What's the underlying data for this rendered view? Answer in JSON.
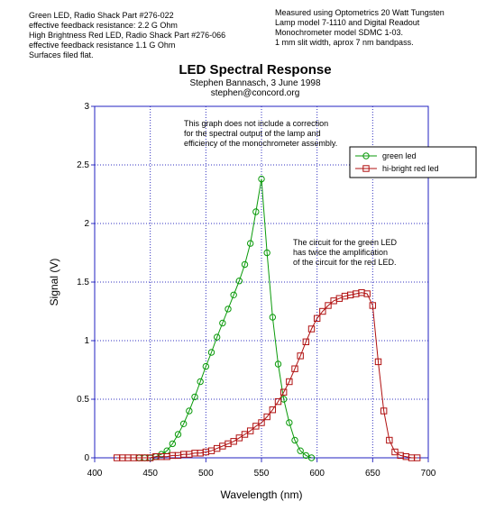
{
  "chart_data": {
    "type": "line",
    "title": "LED Spectral Response",
    "subtitle": [
      "Stephen Bannasch, 3 June 1998",
      "stephen@concord.org"
    ],
    "notes_left": [
      "Green LED, Radio Shack Part #276-022",
      "effective feedback resistance: 2.2 G Ohm",
      "High Brightness Red LED, Radio Shack Part #276-066",
      "effective feedback resistance 1.1 G Ohm",
      "Surfaces filed flat."
    ],
    "notes_right": [
      "Measured using Optometrics 20 Watt Tungsten",
      "Lamp model 7-1110 and Digital Readout",
      "Monochrometer model SDMC 1-03.",
      "1 mm slit width, aprox 7 nm bandpass."
    ],
    "annotations": [
      [
        "This graph does not include a correction",
        "for the spectral output of the lamp and",
        "efficiency of the monochrometer assembly."
      ],
      [
        "The circuit for the green LED",
        "has twice the amplification",
        "of the circuit for the red LED."
      ]
    ],
    "xlabel": "Wavelength (nm)",
    "ylabel": "Signal (V)",
    "xlim": [
      400,
      700
    ],
    "xticks": [
      400,
      450,
      500,
      550,
      600,
      650,
      700
    ],
    "ylim": [
      0,
      3
    ],
    "yticks": [
      0,
      0.5,
      1,
      1.5,
      2,
      2.5,
      3
    ],
    "grid": true,
    "legend": "upper right",
    "series": [
      {
        "name": "green led",
        "color": "#0a9a0a",
        "marker": "circle",
        "x": [
          440,
          445,
          450,
          455,
          460,
          465,
          470,
          475,
          480,
          485,
          490,
          495,
          500,
          505,
          510,
          515,
          520,
          525,
          530,
          535,
          540,
          545,
          550,
          555,
          560,
          565,
          570,
          575,
          580,
          585,
          590,
          595
        ],
        "values": [
          0,
          0,
          0,
          0.01,
          0.03,
          0.06,
          0.12,
          0.2,
          0.29,
          0.4,
          0.52,
          0.65,
          0.78,
          0.9,
          1.03,
          1.15,
          1.27,
          1.39,
          1.51,
          1.65,
          1.83,
          2.1,
          2.38,
          1.75,
          1.2,
          0.8,
          0.5,
          0.3,
          0.15,
          0.06,
          0.02,
          0
        ]
      },
      {
        "name": "hi-bright red led",
        "color": "#b01010",
        "marker": "square",
        "x": [
          420,
          425,
          430,
          435,
          440,
          445,
          450,
          455,
          460,
          465,
          470,
          475,
          480,
          485,
          490,
          495,
          500,
          505,
          510,
          515,
          520,
          525,
          530,
          535,
          540,
          545,
          550,
          555,
          560,
          565,
          570,
          575,
          580,
          585,
          590,
          595,
          600,
          605,
          610,
          615,
          620,
          625,
          630,
          635,
          640,
          645,
          650,
          655,
          660,
          665,
          670,
          675,
          680,
          685,
          690
        ],
        "values": [
          0,
          0,
          0,
          0,
          0,
          0,
          0,
          0.01,
          0.01,
          0.01,
          0.02,
          0.02,
          0.03,
          0.03,
          0.04,
          0.04,
          0.05,
          0.06,
          0.08,
          0.1,
          0.12,
          0.14,
          0.17,
          0.2,
          0.23,
          0.27,
          0.3,
          0.35,
          0.41,
          0.48,
          0.56,
          0.65,
          0.76,
          0.87,
          0.99,
          1.1,
          1.19,
          1.25,
          1.3,
          1.34,
          1.36,
          1.38,
          1.39,
          1.4,
          1.41,
          1.4,
          1.3,
          0.82,
          0.4,
          0.15,
          0.05,
          0.02,
          0.01,
          0,
          0
        ]
      }
    ]
  }
}
